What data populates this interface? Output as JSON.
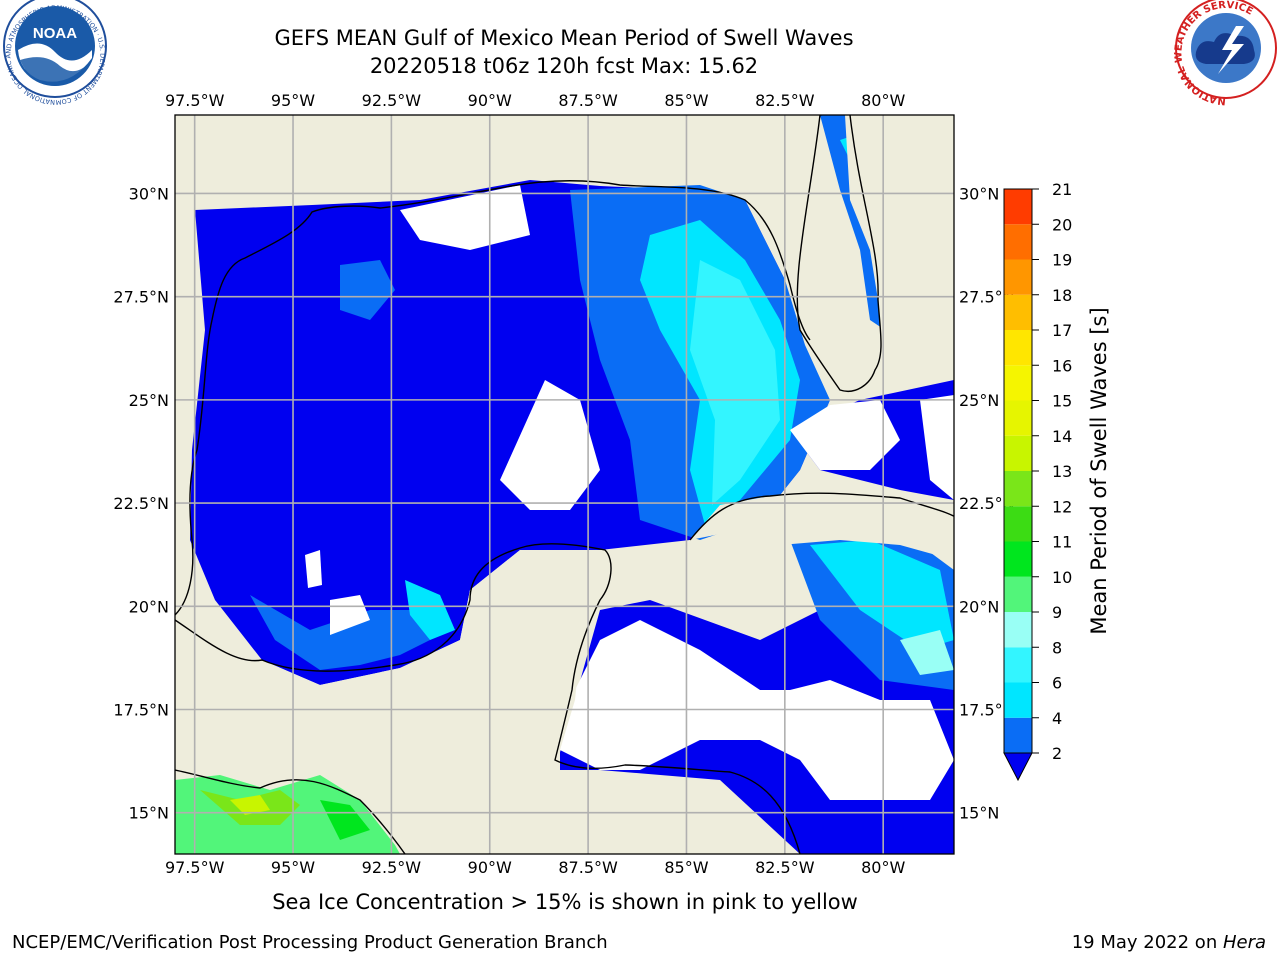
{
  "header": {
    "title": "GEFS MEAN Gulf of Mexico Mean Period of Swell Waves",
    "subtitle": "20220518 t06z 120h fcst   Max: 15.62"
  },
  "footer": {
    "note": "Sea Ice Concentration > 15% is shown in pink to yellow",
    "credit_left": "NCEP/EMC/Verification Post Processing Product Generation Branch",
    "credit_date": "19 May 2022 on ",
    "credit_host": "Hera"
  },
  "logos": {
    "noaa": {
      "text": "NOAA",
      "ring_text": "NATIONAL OCEANIC AND ATMOSPHERIC ADMINISTRATION · U.S. DEPARTMENT OF COMMERCE"
    },
    "nws": {
      "ring_text": "NATIONAL WEATHER SERVICE"
    }
  },
  "colors": {
    "land": "#eeeddc",
    "no_data": "#ffffff",
    "grid": "#b0b0b0",
    "coast": "#000000"
  },
  "chart_data": {
    "type": "heatmap",
    "title": "GEFS MEAN Gulf of Mexico Mean Period of Swell Waves",
    "max_value": 15.62,
    "lon_ticks": [
      "97.5°W",
      "95°W",
      "92.5°W",
      "90°W",
      "87.5°W",
      "85°W",
      "82.5°W",
      "80°W"
    ],
    "lon_values": [
      -97.5,
      -95,
      -92.5,
      -90,
      -87.5,
      -85,
      -82.5,
      -80
    ],
    "lat_ticks": [
      "15°N",
      "17.5°N",
      "20°N",
      "22.5°N",
      "25°N",
      "27.5°N",
      "30°N"
    ],
    "lat_values": [
      15,
      17.5,
      20,
      22.5,
      25,
      27.5,
      30
    ],
    "lon_range": [
      -98,
      -78.2
    ],
    "lat_range": [
      14,
      31.9
    ],
    "grid": true,
    "colorbar": {
      "label": "Mean Period of Swell Waves [s]",
      "levels": [
        2,
        4,
        6,
        8,
        9,
        10,
        11,
        12,
        13,
        14,
        15,
        16,
        17,
        18,
        19,
        20,
        21
      ],
      "tick_labels": [
        "2",
        "4",
        "6",
        "8",
        "9",
        "10",
        "11",
        "12",
        "13",
        "14",
        "15",
        "16",
        "17",
        "18",
        "19",
        "20",
        "21"
      ],
      "colors": [
        "#0a6df5",
        "#00e6ff",
        "#33f5ff",
        "#99fff5",
        "#52f57a",
        "#00e61e",
        "#3cdc14",
        "#7ae619",
        "#c8f500",
        "#e6f500",
        "#f5f500",
        "#ffe600",
        "#ffbe00",
        "#ff9600",
        "#ff6e00",
        "#ff3c00",
        "#f00000"
      ],
      "under_color": "#0000f0",
      "extend": "min"
    }
  }
}
